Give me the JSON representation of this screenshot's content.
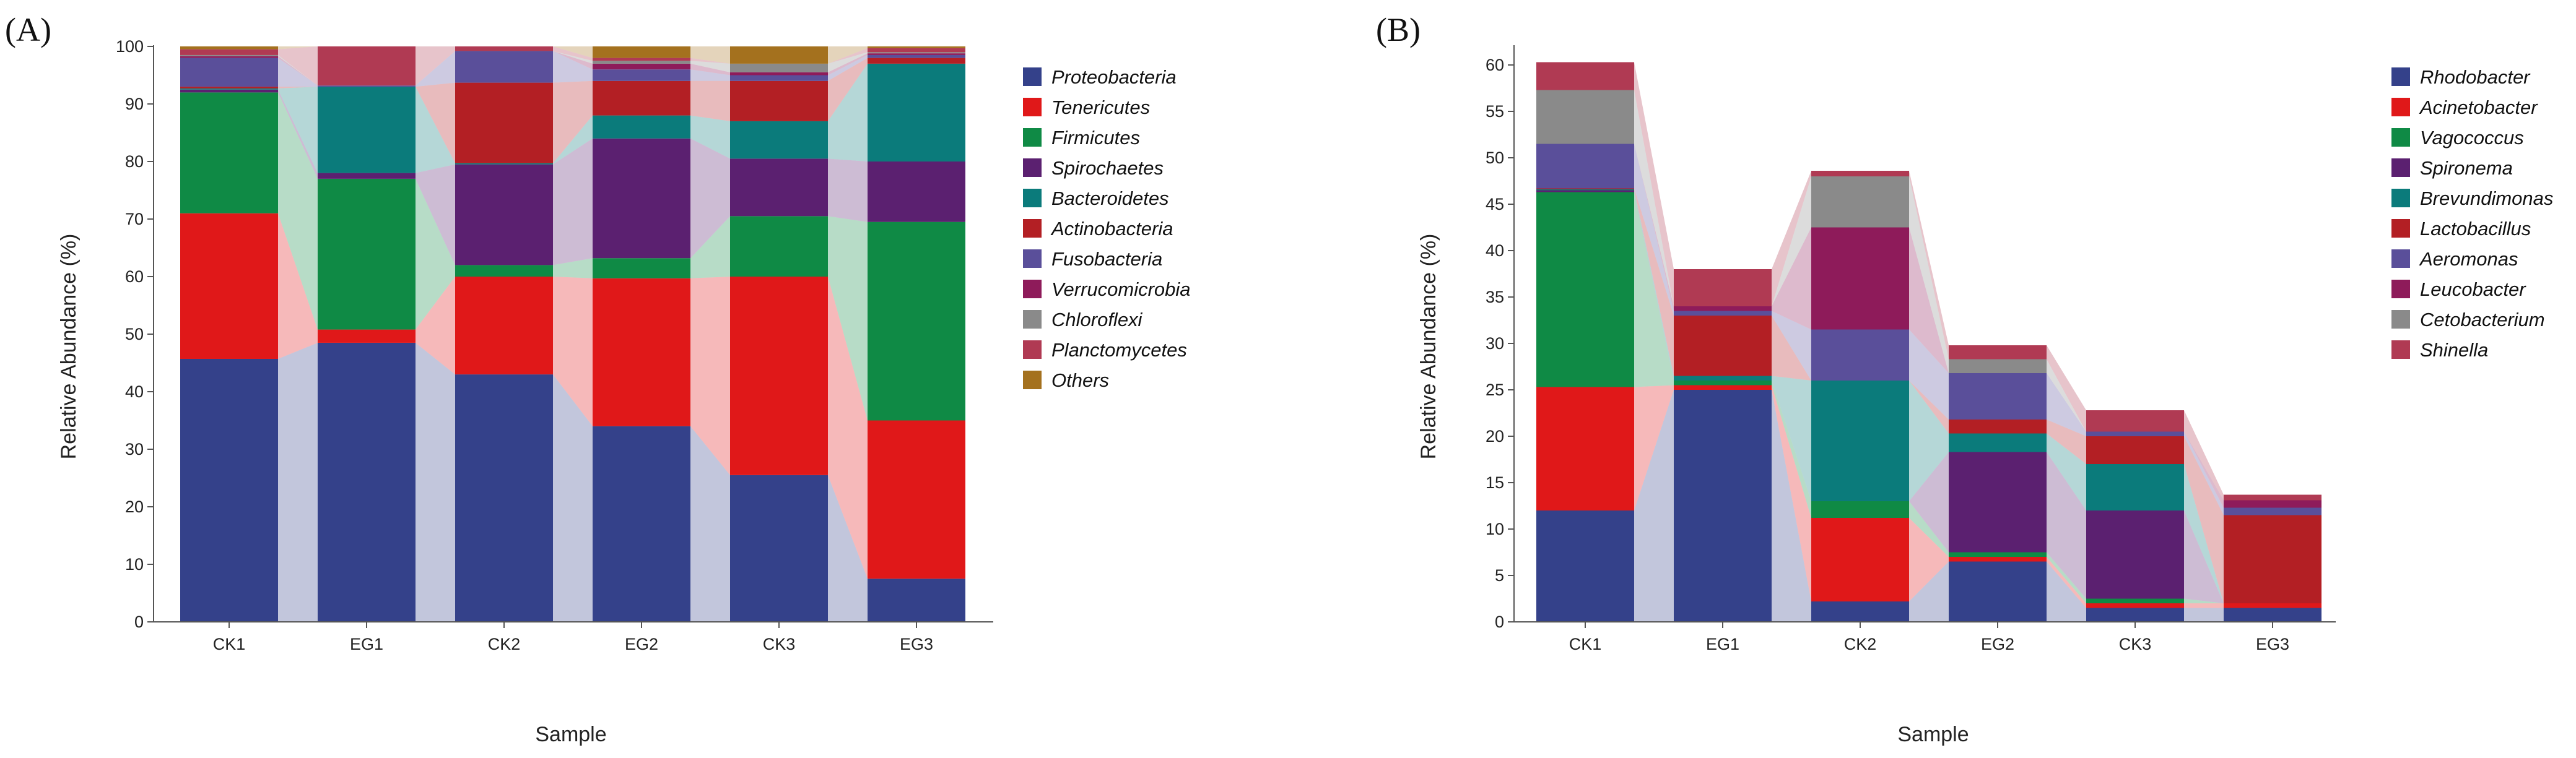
{
  "chart_data": [
    {
      "type": "bar",
      "subtype": "stacked-bar-with-flow",
      "panel_label": "(A)",
      "xlabel": "Sample",
      "ylabel": "Relative Abundance (%)",
      "ylim": [
        0,
        100
      ],
      "yticks": [
        0,
        10,
        20,
        30,
        40,
        50,
        60,
        70,
        80,
        90,
        100
      ],
      "grid": false,
      "legend_position": "right",
      "categories": [
        "CK1",
        "EG1",
        "CK2",
        "EG2",
        "CK3",
        "EG3"
      ],
      "series": [
        {
          "name": "Proteobacteria",
          "color": "#34418a",
          "values": [
            45.7,
            48.5,
            43.0,
            34.0,
            25.5,
            7.5
          ]
        },
        {
          "name": "Tenericutes",
          "color": "#e01819",
          "values": [
            25.3,
            2.3,
            17.0,
            25.7,
            34.5,
            27.5
          ]
        },
        {
          "name": "Firmicutes",
          "color": "#0f8a45",
          "values": [
            21.0,
            26.2,
            2.0,
            3.5,
            10.5,
            34.5
          ]
        },
        {
          "name": "Spirochaetes",
          "color": "#5b2070",
          "values": [
            0.5,
            1.0,
            17.5,
            20.8,
            10.0,
            10.5
          ]
        },
        {
          "name": "Bacteroidetes",
          "color": "#0b7b7b",
          "values": [
            0.2,
            15.0,
            0.2,
            4.0,
            6.5,
            17.0
          ]
        },
        {
          "name": "Actinobacteria",
          "color": "#b31f24",
          "values": [
            0.3,
            0.0,
            14.0,
            6.0,
            7.0,
            1.0
          ]
        },
        {
          "name": "Fusobacteria",
          "color": "#5a4f9a",
          "values": [
            5.0,
            0.2,
            5.5,
            2.0,
            1.0,
            0.5
          ]
        },
        {
          "name": "Verrucomicrobia",
          "color": "#8e1b5a",
          "values": [
            0.3,
            0.0,
            0.0,
            1.0,
            0.5,
            0.3
          ]
        },
        {
          "name": "Chloroflexi",
          "color": "#8a8a8a",
          "values": [
            0.2,
            0.0,
            0.0,
            0.5,
            1.5,
            0.2
          ]
        },
        {
          "name": "Planctomycetes",
          "color": "#b03a53",
          "values": [
            1.0,
            6.8,
            0.8,
            0.5,
            0.0,
            0.7
          ]
        },
        {
          "name": "Others",
          "color": "#a4711e",
          "values": [
            0.5,
            0.0,
            0.0,
            2.0,
            3.0,
            0.3
          ]
        }
      ]
    },
    {
      "type": "bar",
      "subtype": "stacked-bar-with-flow",
      "panel_label": "(B)",
      "xlabel": "Sample",
      "ylabel": "Relative Abundance (%)",
      "ylim": [
        0,
        62
      ],
      "yticks": [
        0,
        5,
        10,
        15,
        20,
        25,
        30,
        35,
        40,
        45,
        50,
        55,
        60
      ],
      "grid": false,
      "legend_position": "right",
      "categories": [
        "CK1",
        "EG1",
        "CK2",
        "EG2",
        "CK3",
        "EG3"
      ],
      "series": [
        {
          "name": "Rhodobacter",
          "color": "#34418a",
          "values": [
            12.0,
            25.0,
            2.2,
            6.5,
            1.5,
            1.5
          ]
        },
        {
          "name": "Acinetobacter",
          "color": "#e01819",
          "values": [
            13.3,
            0.5,
            9.0,
            0.5,
            0.5,
            0.5
          ]
        },
        {
          "name": "Vagococcus",
          "color": "#0f8a45",
          "values": [
            21.0,
            0.5,
            1.8,
            0.5,
            0.5,
            0.0
          ]
        },
        {
          "name": "Spironema",
          "color": "#5b2070",
          "values": [
            0.2,
            0.0,
            0.0,
            10.8,
            9.5,
            0.0
          ]
        },
        {
          "name": "Brevundimonas",
          "color": "#0b7b7b",
          "values": [
            0.1,
            0.5,
            13.0,
            2.0,
            5.0,
            0.0
          ]
        },
        {
          "name": "Lactobacillus",
          "color": "#b31f24",
          "values": [
            0.1,
            6.5,
            0.0,
            1.5,
            3.0,
            9.5
          ]
        },
        {
          "name": "Aeromonas",
          "color": "#5a4f9a",
          "values": [
            4.8,
            0.5,
            5.5,
            5.0,
            0.5,
            0.8
          ]
        },
        {
          "name": "Leucobacter",
          "color": "#8e1b5a",
          "values": [
            0.0,
            0.5,
            11.0,
            0.0,
            0.0,
            0.8
          ]
        },
        {
          "name": "Cetobacterium",
          "color": "#8a8a8a",
          "values": [
            5.8,
            0.0,
            5.5,
            1.5,
            0.0,
            0.0
          ]
        },
        {
          "name": "Shinella",
          "color": "#b03a53",
          "values": [
            3.0,
            4.0,
            0.6,
            1.5,
            2.3,
            0.6
          ]
        }
      ]
    }
  ]
}
